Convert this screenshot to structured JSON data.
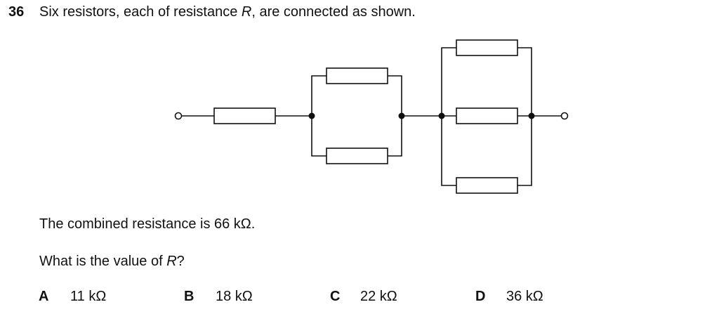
{
  "question": {
    "number": "36",
    "stem_prefix": "Six resistors, each of resistance ",
    "stem_symbol": "R",
    "stem_suffix": ", are connected as shown.",
    "combined_text": "The combined resistance is 66 kΩ.",
    "prompt_prefix": "What is the value of ",
    "prompt_symbol": "R",
    "prompt_suffix": "?"
  },
  "options": [
    {
      "letter": "A",
      "value": "11 kΩ"
    },
    {
      "letter": "B",
      "value": "18 kΩ"
    },
    {
      "letter": "C",
      "value": "22 kΩ"
    },
    {
      "letter": "D",
      "value": "36 kΩ"
    }
  ],
  "colors": {
    "ink": "#111111",
    "resistor_fill": "#ffffff"
  }
}
